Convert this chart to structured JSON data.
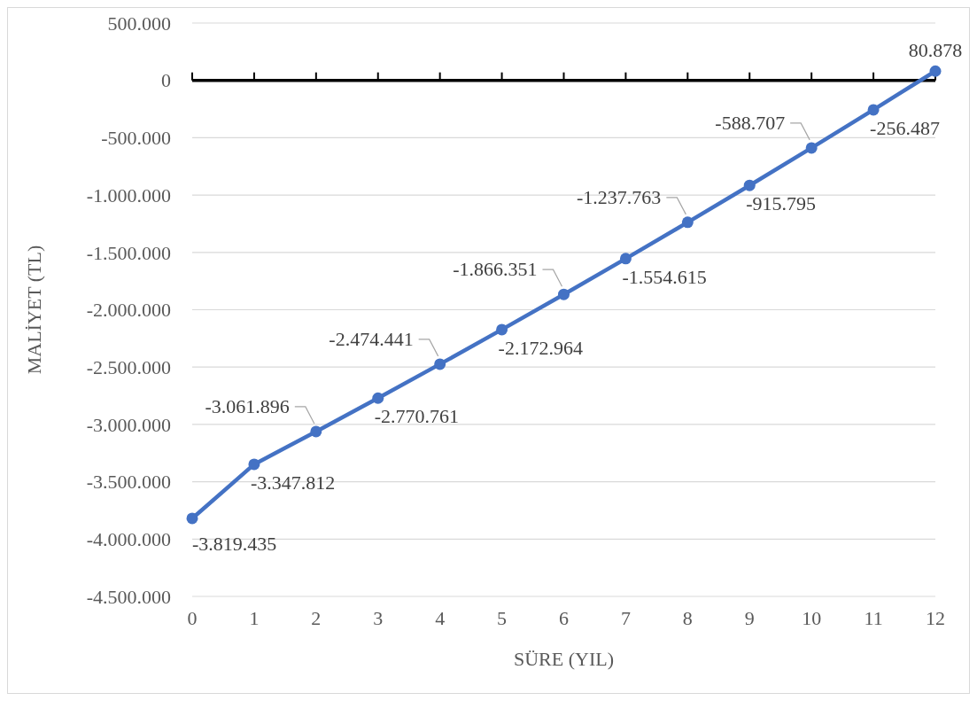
{
  "chart_data": {
    "type": "line",
    "xlabel": "SÜRE (YIL)",
    "ylabel": "MALİYET (TL)",
    "x": [
      0,
      1,
      2,
      3,
      4,
      5,
      6,
      7,
      8,
      9,
      10,
      11,
      12
    ],
    "series": [
      {
        "color": "#4472c4",
        "values": [
          -3819435,
          -3347812,
          -3061896,
          -2770761,
          -2474441,
          -2172964,
          -1866351,
          -1554615,
          -1237763,
          -915795,
          -588707,
          -256487,
          80878
        ],
        "value_labels": [
          "-3.819.435",
          "-3.347.812",
          "-3.061.896",
          "-2.770.761",
          "-2.474.441",
          "-2.172.964",
          "-1.866.351",
          "-1.554.615",
          "-1.237.763",
          "-915.795",
          "-588.707",
          "-256.487",
          "80.878"
        ]
      }
    ],
    "xlim": [
      0,
      12
    ],
    "xticks": [
      0,
      1,
      2,
      3,
      4,
      5,
      6,
      7,
      8,
      9,
      10,
      11,
      12
    ],
    "ylim": [
      -4500000,
      500000
    ],
    "yticks": [
      {
        "value": 500000,
        "label": "500.000"
      },
      0,
      {
        "value": -500000,
        "label": "-500.000"
      },
      {
        "value": -1000000,
        "label": "-1.000.000"
      },
      {
        "value": -1500000,
        "label": "-1.500.000"
      },
      {
        "value": -2000000,
        "label": "-2.000.000"
      },
      {
        "value": -2500000,
        "label": "-2.500.000"
      },
      {
        "value": -3000000,
        "label": "-3.000.000"
      },
      {
        "value": -3500000,
        "label": "-3.500.000"
      },
      {
        "value": -4000000,
        "label": "-4.000.000"
      },
      {
        "value": -4500000,
        "label": "-4.500.000"
      }
    ],
    "grid": "y",
    "marker": "circle",
    "line_style": "solid"
  }
}
